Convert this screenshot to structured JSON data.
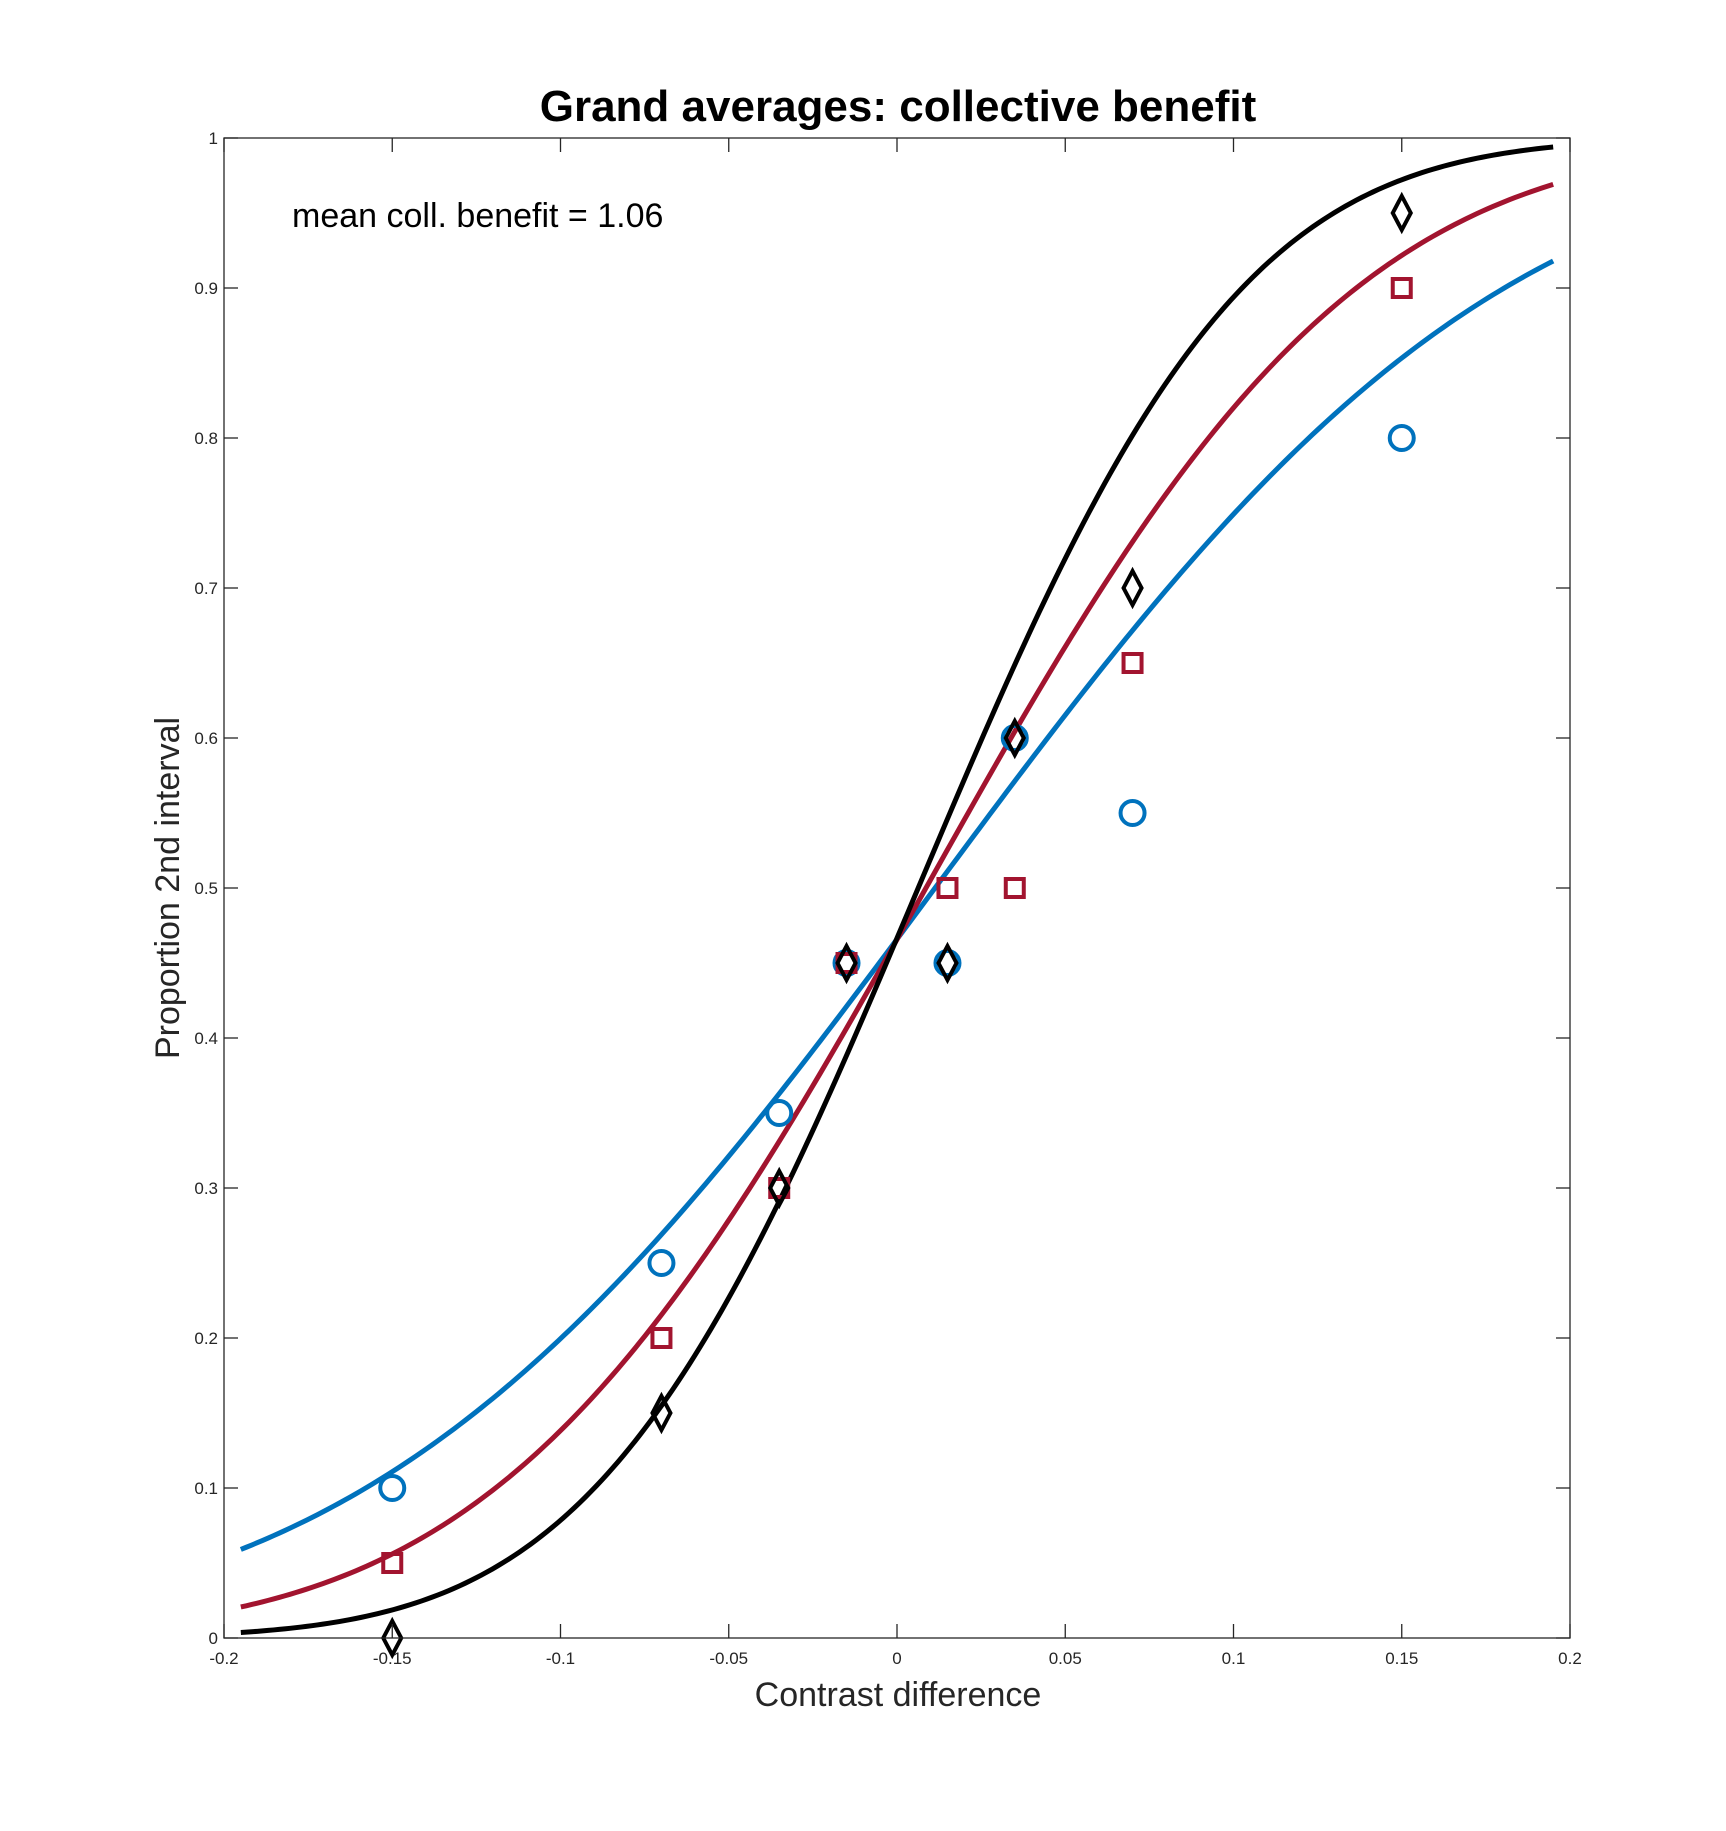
{
  "chart_data": {
    "type": "scatter",
    "title": "Grand averages: collective benefit",
    "xlabel": "Contrast difference",
    "ylabel": "Proportion 2nd interval",
    "xlim": [
      -0.2,
      0.2
    ],
    "ylim": [
      0,
      1
    ],
    "xticks": [
      -0.2,
      -0.15,
      -0.1,
      -0.05,
      0,
      0.05,
      0.1,
      0.15,
      0.2
    ],
    "xtick_labels": [
      "-0.2",
      "-0.15",
      "-0.1",
      "-0.05",
      "0",
      "0.05",
      "0.1",
      "0.15",
      "0.2"
    ],
    "yticks": [
      0,
      0.1,
      0.2,
      0.3,
      0.4,
      0.5,
      0.6,
      0.7,
      0.8,
      0.9,
      1
    ],
    "ytick_labels": [
      "0",
      "0.1",
      "0.2",
      "0.3",
      "0.4",
      "0.5",
      "0.6",
      "0.7",
      "0.8",
      "0.9",
      "1"
    ],
    "grid": false,
    "annotation": "mean coll. benefit = 1.06",
    "x": [
      -0.15,
      -0.07,
      -0.035,
      -0.015,
      0.015,
      0.035,
      0.07,
      0.15
    ],
    "series": [
      {
        "marker": "circle",
        "color": "#0072BD",
        "values": [
          0.1,
          0.25,
          0.35,
          0.45,
          0.45,
          0.6,
          0.55,
          0.8
        ],
        "fit": {
          "mu": 0.0113,
          "sigma": 0.132,
          "x_range": [
            -0.195,
            0.195
          ]
        }
      },
      {
        "marker": "square",
        "color": "#A2142F",
        "values": [
          0.05,
          0.2,
          0.3,
          0.45,
          0.5,
          0.5,
          0.65,
          0.9
        ],
        "fit": {
          "mu": 0.0086,
          "sigma": 0.0998,
          "x_range": [
            -0.195,
            0.195
          ]
        }
      },
      {
        "marker": "diamond",
        "color": "#000000",
        "values": [
          0.0,
          0.15,
          0.3,
          0.45,
          0.45,
          0.6,
          0.7,
          0.95
        ],
        "fit": {
          "mu": 0.0063,
          "sigma": 0.0751,
          "x_range": [
            -0.195,
            0.195
          ]
        }
      }
    ]
  }
}
